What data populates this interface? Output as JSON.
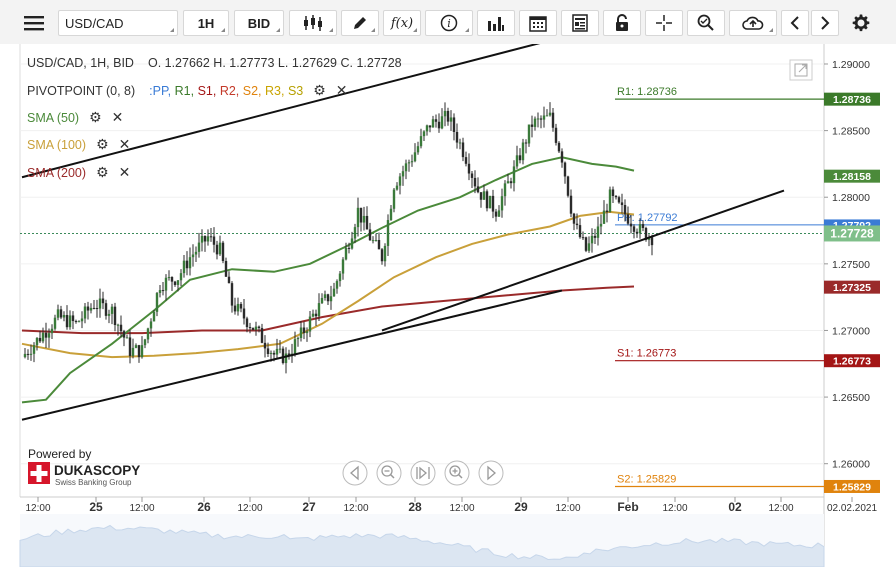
{
  "toolbar": {
    "menu_icon": "hamburger-menu-icon",
    "symbol": "USD/CAD",
    "timeframe": "1H",
    "price_side": "BID",
    "icons": [
      "candlestick-type-icon",
      "draw-pen-icon",
      "function-fx-icon",
      "info-icon",
      "volume-bars-icon",
      "calendar-icon",
      "news-sheet-icon",
      "lock-icon",
      "crosshair-icon",
      "zoom-search-icon",
      "cloud-upload-icon",
      "prev-arrow-icon",
      "next-arrow-icon",
      "gear-icon"
    ]
  },
  "header": {
    "instrument": "USD/CAD, 1H, BID",
    "ohlc": "O. 1.27662  H. 1.27773  L. 1.27629  C. 1.27728"
  },
  "indicators": {
    "pivot": {
      "name": "PIVOTPOINT (0, 8)",
      "sep": ":",
      "items": [
        {
          "label": "PP,",
          "color": "#3a7bd5"
        },
        {
          "label": "R1,",
          "color": "#3b7a2a"
        },
        {
          "label": "S1,",
          "color": "#a31515"
        },
        {
          "label": "R2,",
          "color": "#c43a2a"
        },
        {
          "label": "S2,",
          "color": "#e0830d"
        },
        {
          "label": "R3,",
          "color": "#c9a400"
        },
        {
          "label": "S3",
          "color": "#b6a000"
        }
      ]
    },
    "sma50": {
      "label": "SMA (50)",
      "color": "#4b8a3a"
    },
    "sma100": {
      "label": "SMA (100)",
      "color": "#c9a03a"
    },
    "sma200": {
      "label": "SMA (200)",
      "color": "#9a2a2a"
    }
  },
  "branding": {
    "powered_by": "Powered by",
    "name": "DUKASCOPY",
    "tagline": "Swiss Banking Group"
  },
  "chart_data": {
    "type": "candlestick",
    "symbol": "USD/CAD",
    "timeframe": "1H",
    "ylim": [
      1.2575,
      1.2915
    ],
    "y_ticks": [
      1.26,
      1.265,
      1.27,
      1.275,
      1.28,
      1.285,
      1.29
    ],
    "y_tick_labels": [
      "1.26000",
      "1.26500",
      "1.27000",
      "1.27500",
      "1.28000",
      "1.28500",
      "1.29000"
    ],
    "x_tick_labels": [
      "12:00",
      "25",
      "12:00",
      "26",
      "12:00",
      "27",
      "12:00",
      "28",
      "12:00",
      "29",
      "12:00",
      "Feb",
      "12:00",
      "02",
      "12:00",
      "02.02.2021"
    ],
    "pivot_levels": [
      {
        "name": "R1",
        "label": "R1: 1.28736",
        "value": 1.28736,
        "tag": "1.28736",
        "color": "#3b7a2a"
      },
      {
        "name": "PP",
        "label": "PP: 1.27792",
        "value": 1.27792,
        "tag": "1.27792",
        "color": "#3a7bd5"
      },
      {
        "name": "S1",
        "label": "S1: 1.26773",
        "value": 1.26773,
        "tag": "1.26773",
        "color": "#a31515"
      },
      {
        "name": "S2",
        "label": "S2: 1.25829",
        "value": 1.25829,
        "tag": "1.25829",
        "color": "#e0830d"
      }
    ],
    "sma_tags": [
      {
        "name": "SMA (50)",
        "value": 1.28158,
        "tag": "1.28158",
        "color": "#4b8a3a"
      },
      {
        "name": "SMA (200)",
        "value": 1.27325,
        "tag": "1.27325",
        "color": "#9a2a2a"
      }
    ],
    "current_price": {
      "value": 1.27728,
      "tag": "1.27728"
    },
    "close_anchors": [
      [
        0,
        1.268
      ],
      [
        6,
        1.2695
      ],
      [
        12,
        1.271
      ],
      [
        18,
        1.2705
      ],
      [
        24,
        1.272
      ],
      [
        30,
        1.2715
      ],
      [
        36,
        1.2685
      ],
      [
        40,
        1.2685
      ],
      [
        46,
        1.2735
      ],
      [
        52,
        1.274
      ],
      [
        56,
        1.2755
      ],
      [
        62,
        1.277
      ],
      [
        66,
        1.276
      ],
      [
        70,
        1.272
      ],
      [
        78,
        1.27
      ],
      [
        84,
        1.2682
      ],
      [
        88,
        1.268
      ],
      [
        94,
        1.27
      ],
      [
        98,
        1.2715
      ],
      [
        104,
        1.273
      ],
      [
        108,
        1.276
      ],
      [
        112,
        1.279
      ],
      [
        116,
        1.277
      ],
      [
        120,
        1.2755
      ],
      [
        124,
        1.281
      ],
      [
        130,
        1.283
      ],
      [
        136,
        1.2855
      ],
      [
        142,
        1.286
      ],
      [
        148,
        1.283
      ],
      [
        152,
        1.2805
      ],
      [
        158,
        1.279
      ],
      [
        164,
        1.282
      ],
      [
        170,
        1.2855
      ],
      [
        176,
        1.286
      ],
      [
        180,
        1.283
      ],
      [
        184,
        1.278
      ],
      [
        188,
        1.276
      ],
      [
        192,
        1.2775
      ],
      [
        196,
        1.28
      ],
      [
        202,
        1.2785
      ],
      [
        206,
        1.2775
      ],
      [
        210,
        1.277
      ]
    ],
    "sma50": [
      [
        0,
        1.2646
      ],
      [
        8,
        1.2648
      ],
      [
        16,
        1.2668
      ],
      [
        30,
        1.269
      ],
      [
        44,
        1.2715
      ],
      [
        56,
        1.2738
      ],
      [
        70,
        1.2746
      ],
      [
        84,
        1.2744
      ],
      [
        96,
        1.275
      ],
      [
        108,
        1.2763
      ],
      [
        120,
        1.2777
      ],
      [
        132,
        1.279
      ],
      [
        146,
        1.28
      ],
      [
        158,
        1.2813
      ],
      [
        170,
        1.2825
      ],
      [
        180,
        1.283
      ],
      [
        190,
        1.2825
      ],
      [
        198,
        1.2823
      ],
      [
        204,
        1.282
      ]
    ],
    "sma100": [
      [
        0,
        1.269
      ],
      [
        16,
        1.2683
      ],
      [
        30,
        1.268
      ],
      [
        44,
        1.2681
      ],
      [
        58,
        1.2683
      ],
      [
        72,
        1.2686
      ],
      [
        86,
        1.269
      ],
      [
        100,
        1.2705
      ],
      [
        112,
        1.2722
      ],
      [
        124,
        1.274
      ],
      [
        138,
        1.2755
      ],
      [
        150,
        1.2765
      ],
      [
        162,
        1.2772
      ],
      [
        176,
        1.2778
      ],
      [
        186,
        1.2786
      ],
      [
        196,
        1.2789
      ],
      [
        204,
        1.2787
      ]
    ],
    "sma200": [
      [
        0,
        1.27
      ],
      [
        20,
        1.2698
      ],
      [
        40,
        1.2698
      ],
      [
        60,
        1.27
      ],
      [
        80,
        1.27
      ],
      [
        100,
        1.271
      ],
      [
        120,
        1.2718
      ],
      [
        140,
        1.2722
      ],
      [
        160,
        1.2726
      ],
      [
        180,
        1.273
      ],
      [
        195,
        1.2732
      ],
      [
        204,
        1.2733
      ]
    ],
    "channel_upper": [
      [
        1.2815,
        0
      ],
      [
        1.292,
        180
      ]
    ],
    "channel_lower": [
      [
        1.2633,
        0
      ],
      [
        1.273,
        180
      ]
    ],
    "lower_trend_ext": [
      [
        1.27,
        120
      ],
      [
        1.2805,
        254
      ]
    ]
  },
  "nav": {
    "icons": [
      "scroll-left-icon",
      "zoom-out-icon",
      "reset-zoom-icon",
      "zoom-in-icon",
      "scroll-right-icon"
    ]
  }
}
